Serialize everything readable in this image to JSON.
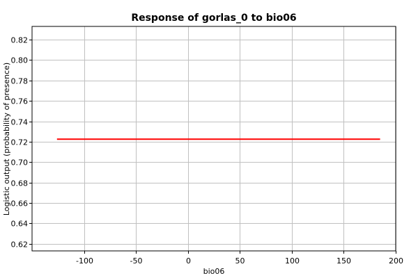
{
  "chart_data": {
    "type": "line",
    "title": "Response of gorlas_0 to bio06",
    "xlabel": "bio06",
    "ylabel": "Logistic output (probability of presence)",
    "xlim": [
      -150,
      200
    ],
    "ylim": [
      0.613,
      0.833
    ],
    "xticks": [
      -100,
      -50,
      0,
      50,
      100,
      150,
      200
    ],
    "xtick_labels": [
      "-100",
      "-50",
      "0",
      "50",
      "100",
      "150",
      "200"
    ],
    "yticks": [
      0.62,
      0.64,
      0.66,
      0.68,
      0.7,
      0.72,
      0.74,
      0.76,
      0.78,
      0.8,
      0.82
    ],
    "ytick_labels": [
      "0.62",
      "0.64",
      "0.66",
      "0.68",
      "0.70",
      "0.72",
      "0.74",
      "0.76",
      "0.78",
      "0.80",
      "0.82"
    ],
    "grid": true,
    "series": [
      {
        "color": "#ff0000",
        "x": [
          -126,
          185
        ],
        "y": [
          0.7225,
          0.7225
        ]
      }
    ]
  }
}
